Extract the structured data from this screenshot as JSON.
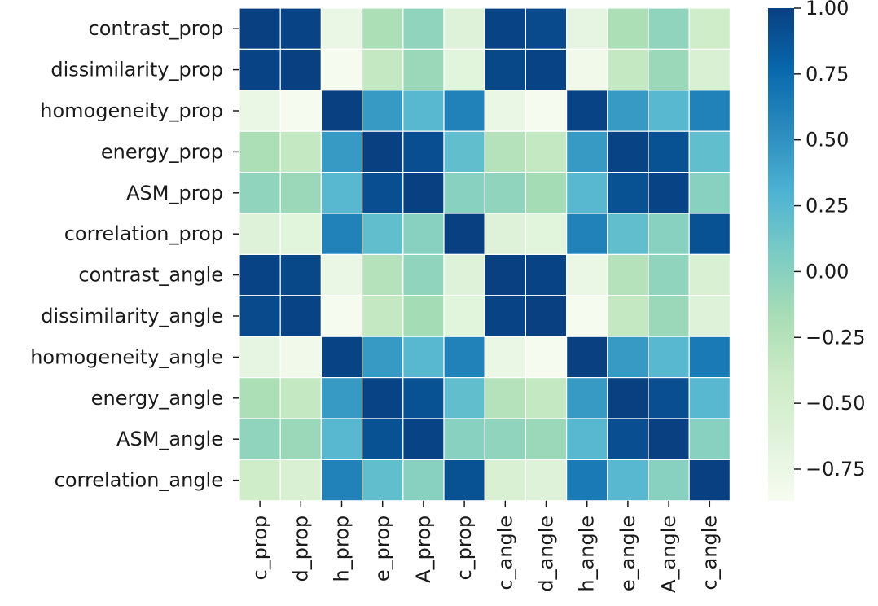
{
  "chart_data": {
    "type": "heatmap",
    "title": "",
    "xlabel": "",
    "ylabel": "",
    "row_labels": [
      "contrast_prop",
      "dissimilarity_prop",
      "homogeneity_prop",
      "energy_prop",
      "ASM_prop",
      "correlation_prop",
      "contrast_angle",
      "dissimilarity_angle",
      "homogeneity_angle",
      "energy_angle",
      "ASM_angle",
      "correlation_angle"
    ],
    "col_labels": [
      "c_prop",
      "d_prop",
      "h_prop",
      "e_prop",
      "A_prop",
      "c_prop",
      "c_angle",
      "d_angle",
      "h_angle",
      "e_angle",
      "A_angle",
      "c_angle"
    ],
    "values": [
      [
        1.0,
        0.98,
        -0.75,
        -0.2,
        -0.05,
        -0.6,
        0.98,
        0.94,
        -0.7,
        -0.2,
        -0.05,
        -0.45
      ],
      [
        0.98,
        1.0,
        -0.85,
        -0.35,
        -0.1,
        -0.65,
        0.96,
        0.98,
        -0.8,
        -0.35,
        -0.1,
        -0.55
      ],
      [
        -0.75,
        -0.85,
        1.0,
        0.45,
        0.25,
        0.6,
        -0.75,
        -0.85,
        0.98,
        0.45,
        0.25,
        0.6
      ],
      [
        -0.2,
        -0.35,
        0.45,
        1.0,
        0.92,
        0.2,
        -0.25,
        -0.35,
        0.45,
        0.98,
        0.9,
        0.2
      ],
      [
        -0.05,
        -0.1,
        0.25,
        0.92,
        1.0,
        0.0,
        -0.05,
        -0.15,
        0.25,
        0.9,
        0.98,
        0.0
      ],
      [
        -0.6,
        -0.65,
        0.6,
        0.2,
        0.0,
        1.0,
        -0.6,
        -0.65,
        0.6,
        0.2,
        0.0,
        0.9
      ],
      [
        0.98,
        0.96,
        -0.75,
        -0.25,
        -0.05,
        -0.6,
        1.0,
        0.98,
        -0.75,
        -0.25,
        -0.05,
        -0.55
      ],
      [
        0.94,
        0.98,
        -0.85,
        -0.35,
        -0.15,
        -0.65,
        0.98,
        1.0,
        -0.85,
        -0.35,
        -0.1,
        -0.6
      ],
      [
        -0.7,
        -0.8,
        0.98,
        0.45,
        0.25,
        0.6,
        -0.75,
        -0.85,
        1.0,
        0.45,
        0.25,
        0.65
      ],
      [
        -0.2,
        -0.35,
        0.45,
        0.98,
        0.9,
        0.2,
        -0.25,
        -0.35,
        0.45,
        1.0,
        0.92,
        0.25
      ],
      [
        -0.05,
        -0.1,
        0.25,
        0.9,
        0.98,
        0.0,
        -0.05,
        -0.1,
        0.25,
        0.92,
        1.0,
        0.0
      ],
      [
        -0.45,
        -0.55,
        0.6,
        0.2,
        0.0,
        0.9,
        -0.55,
        -0.6,
        0.65,
        0.25,
        0.0,
        1.0
      ]
    ],
    "colorbar": {
      "min": -0.87,
      "max": 1.0,
      "ticks": [
        1.0,
        0.75,
        0.5,
        0.25,
        0.0,
        -0.25,
        -0.5,
        -0.75
      ],
      "tick_labels": [
        "1.00",
        "0.75",
        "0.50",
        "0.25",
        "0.00",
        "−0.25",
        "−0.50",
        "−0.75"
      ]
    },
    "colormap": [
      "#f7fcf0",
      "#e0f3db",
      "#ccebc5",
      "#a8ddb5",
      "#7bccc4",
      "#4eb3d3",
      "#2b8cbe",
      "#0868ac",
      "#084081"
    ],
    "grid": false,
    "legend": "colorbar-right"
  }
}
